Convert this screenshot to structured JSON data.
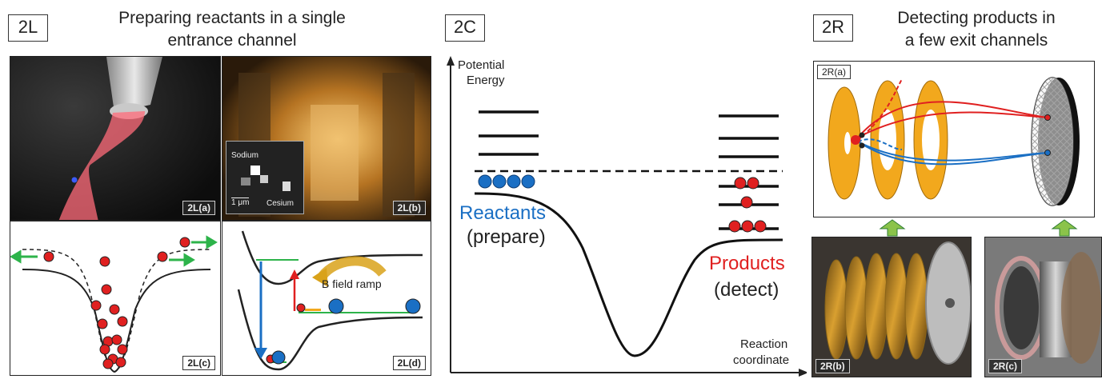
{
  "left": {
    "tag": "2L",
    "title_line1": "Preparing reactants in a single",
    "title_line2": "entrance channel",
    "panel_a": "2L(a)",
    "panel_b": "2L(b)",
    "panel_c": "2L(c)",
    "panel_d": "2L(d)",
    "inset_sodium": "Sodium",
    "inset_cesium": "Cesium",
    "inset_scale": "1 μm",
    "b_field_ramp": "B field ramp"
  },
  "center": {
    "tag": "2C",
    "y_axis_line1": "Potential",
    "y_axis_line2": "Energy",
    "x_axis_line1": "Reaction",
    "x_axis_line2": "coordinate",
    "reactants": "Reactants",
    "prepare": "(prepare)",
    "products": "Products",
    "detect": "(detect)"
  },
  "right": {
    "tag": "2R",
    "title_line1": "Detecting products in",
    "title_line2": "a few exit channels",
    "panel_a": "2R(a)",
    "panel_b": "2R(b)",
    "panel_c": "2R(c)"
  },
  "colors": {
    "reactant_blue": "#1a6fc4",
    "product_red": "#e02020",
    "disk_orange": "#f2a81d",
    "arrow_green": "#2db34a"
  }
}
